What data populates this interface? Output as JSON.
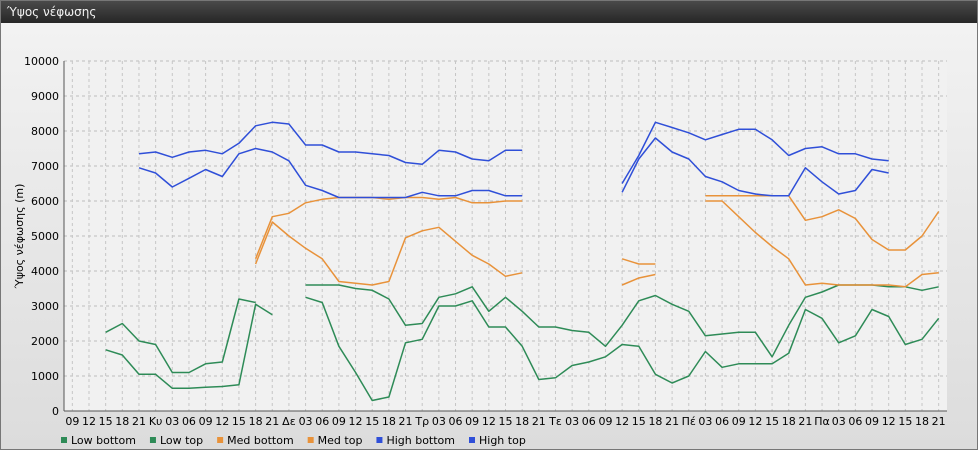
{
  "window": {
    "title": "Ύψος νέφωσης"
  },
  "chart_data": {
    "type": "line",
    "ylabel": "Ύψος νέφωσης (m)",
    "ylim": [
      0,
      10000
    ],
    "yticks": [
      0,
      1000,
      2000,
      3000,
      4000,
      5000,
      6000,
      7000,
      8000,
      9000,
      10000
    ],
    "grid": true,
    "legend": "bottom-left",
    "x_labels": [
      "09",
      "12",
      "15",
      "18",
      "21",
      "Κυ",
      "03",
      "06",
      "09",
      "12",
      "15",
      "18",
      "21",
      "Δε",
      "03",
      "06",
      "09",
      "12",
      "15",
      "18",
      "21",
      "Τρ",
      "03",
      "06",
      "09",
      "12",
      "15",
      "18",
      "21",
      "Τε",
      "03",
      "06",
      "09",
      "12",
      "15",
      "18",
      "21",
      "Πέ",
      "03",
      "06",
      "09",
      "12",
      "15",
      "18",
      "21",
      "Πα",
      "03",
      "06",
      "09",
      "12",
      "15",
      "18",
      "21"
    ],
    "series": [
      {
        "name": "Low bottom",
        "color": "#2e8b57",
        "values": [
          null,
          null,
          1750,
          1600,
          1050,
          1050,
          650,
          650,
          680,
          700,
          750,
          3050,
          2750,
          null,
          3250,
          3100,
          1850,
          1100,
          300,
          400,
          1950,
          2050,
          3000,
          3000,
          3150,
          2400,
          2400,
          1850,
          900,
          950,
          1300,
          1400,
          1550,
          1900,
          1850,
          1050,
          800,
          1000,
          1700,
          1250,
          1350,
          1350,
          1350,
          1650,
          2900,
          2650,
          1950,
          2150,
          2900,
          2700,
          1900,
          2050,
          2650
        ]
      },
      {
        "name": "Low top",
        "color": "#2e8b57",
        "values": [
          null,
          null,
          2250,
          2500,
          2000,
          1900,
          1100,
          1100,
          1350,
          1400,
          3200,
          3100,
          null,
          null,
          3600,
          3600,
          3600,
          3500,
          3450,
          3200,
          2450,
          2500,
          3250,
          3350,
          3550,
          2850,
          3250,
          2850,
          2400,
          2400,
          2300,
          2250,
          1850,
          2450,
          3150,
          3300,
          3050,
          2850,
          2150,
          2200,
          2250,
          2250,
          1550,
          2450,
          3250,
          3400,
          3600,
          3600,
          3600,
          3550,
          3550,
          3450,
          3550
        ]
      },
      {
        "name": "Med bottom",
        "color": "#e8923a",
        "values": [
          null,
          null,
          null,
          null,
          null,
          null,
          null,
          null,
          null,
          null,
          null,
          4200,
          5400,
          5000,
          4650,
          4350,
          3700,
          3650,
          3600,
          3700,
          4950,
          5150,
          5250,
          4850,
          4450,
          4200,
          3850,
          3950,
          null,
          null,
          null,
          null,
          null,
          3600,
          3800,
          3900,
          null,
          null,
          6000,
          6000,
          5550,
          5100,
          4700,
          4350,
          3600,
          3650,
          3600,
          3600,
          3600,
          3600,
          3550,
          3900,
          3950
        ]
      },
      {
        "name": "Med top",
        "color": "#e8923a",
        "values": [
          null,
          null,
          null,
          null,
          null,
          null,
          null,
          null,
          null,
          null,
          null,
          4350,
          5550,
          5650,
          5950,
          6050,
          6100,
          6100,
          6100,
          6050,
          6100,
          6100,
          6050,
          6100,
          5950,
          5950,
          6000,
          6000,
          null,
          null,
          null,
          null,
          null,
          4350,
          4200,
          4200,
          null,
          null,
          6150,
          6150,
          6150,
          6150,
          6150,
          6150,
          5450,
          5550,
          5750,
          5500,
          4900,
          4600,
          4600,
          5000,
          5700
        ]
      },
      {
        "name": "High bottom",
        "color": "#2f4fd8",
        "values": [
          null,
          null,
          null,
          null,
          6950,
          6800,
          6400,
          6650,
          6900,
          6700,
          7350,
          7500,
          7400,
          7150,
          6450,
          6300,
          6100,
          6100,
          6100,
          6100,
          6100,
          6250,
          6150,
          6150,
          6300,
          6300,
          6150,
          6150,
          null,
          null,
          null,
          null,
          null,
          6250,
          7200,
          7800,
          7400,
          7200,
          6700,
          6550,
          6300,
          6200,
          6150,
          6150,
          6950,
          6550,
          6200,
          6300,
          6900,
          6800,
          null,
          null,
          null
        ]
      },
      {
        "name": "High top",
        "color": "#2f4fd8",
        "values": [
          null,
          null,
          null,
          null,
          7350,
          7400,
          7250,
          7400,
          7450,
          7350,
          7650,
          8150,
          8250,
          8200,
          7600,
          7600,
          7400,
          7400,
          7350,
          7300,
          7100,
          7050,
          7450,
          7400,
          7200,
          7150,
          7450,
          7450,
          null,
          null,
          null,
          null,
          null,
          6500,
          7300,
          8250,
          8100,
          7950,
          7750,
          7900,
          8050,
          8050,
          7750,
          7300,
          7500,
          7550,
          7350,
          7350,
          7200,
          7150,
          null,
          null,
          null
        ]
      }
    ]
  }
}
